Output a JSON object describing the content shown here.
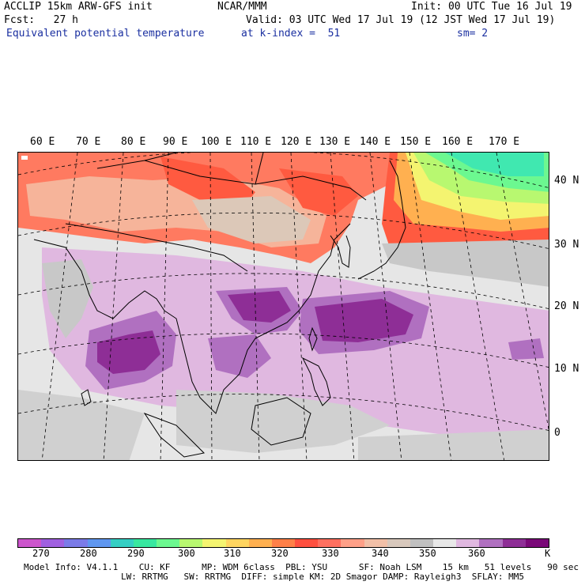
{
  "header": {
    "line1_left": "ACCLIP 15km ARW-GFS init",
    "line1_center": "NCAR/MMM",
    "line1_right": "Init: 00 UTC Tue 16 Jul 19",
    "line2_left": "Fcst:   27 h",
    "line2_right": "Valid: 03 UTC Wed 17 Jul 19 (12 JST Wed 17 Jul 19)",
    "line3_left": "Equivalent potential temperature",
    "line3_center": "at k-index =  51",
    "line3_right": "sm= 2"
  },
  "map": {
    "lon_labels": [
      "60 E",
      "70 E",
      "80 E",
      "90 E",
      "100 E",
      "110 E",
      "120 E",
      "130 E",
      "140 E",
      "150 E",
      "160 E",
      "170 E"
    ],
    "lat_labels": [
      "40 N",
      "30 N",
      "20 N",
      "10 N",
      "0"
    ]
  },
  "colorbar": {
    "unit": "K",
    "labels": [
      "270",
      "280",
      "290",
      "300",
      "310",
      "320",
      "330",
      "340",
      "350",
      "360"
    ],
    "colors": [
      "#cc55cc",
      "#a060e0",
      "#7b7be8",
      "#5f97f0",
      "#35cfc4",
      "#38e8a0",
      "#6cf890",
      "#b8f870",
      "#f4f470",
      "#ffd560",
      "#ffb050",
      "#ff8048",
      "#ff5040",
      "#ff7060",
      "#ffa088",
      "#f2c0a8",
      "#d8c8bc",
      "#c0c0c0",
      "#e8e8e8",
      "#e0b8e0",
      "#b070c0",
      "#8e2e96",
      "#7a0878"
    ]
  },
  "footer": {
    "line1": "Model Info: V4.1.1    CU: KF      MP: WDM 6class  PBL: YSU      SF: Noah LSM    15 km   51 levels   90 sec",
    "line2": "LW: RRTMG   SW: RRTMG  DIFF: simple KM: 2D Smagor DAMP: Rayleigh3  SFLAY: MM5"
  }
}
